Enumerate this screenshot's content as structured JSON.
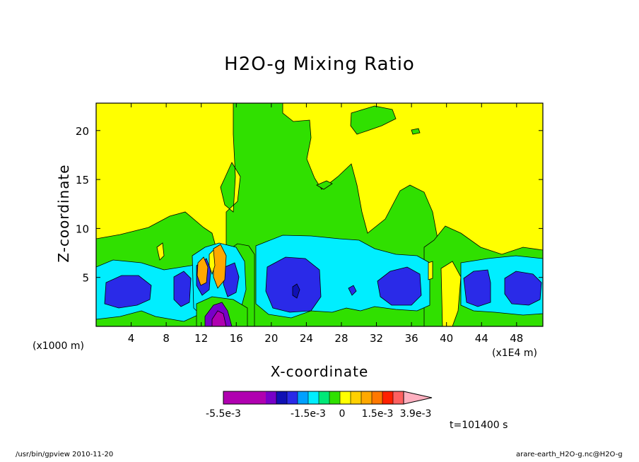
{
  "chart_data": {
    "type": "heatmap",
    "title": "H2O-g Mixing Ratio",
    "xlabel": "X-coordinate",
    "ylabel": "Z-coordinate",
    "x_unit_left": "(x1000 m)",
    "x_unit_right": "(x1E4 m)",
    "xlim": [
      0,
      51
    ],
    "ylim": [
      0,
      22.8
    ],
    "x_ticks": [
      4,
      8,
      12,
      16,
      20,
      24,
      28,
      32,
      36,
      40,
      44,
      48
    ],
    "y_ticks": [
      5,
      10,
      15,
      20
    ],
    "colorbar": {
      "colors": [
        "#b000b0",
        "#b000b0",
        "#b000b0",
        "#b000b0",
        "#7800c8",
        "#1010b4",
        "#2a2ae8",
        "#00a0ff",
        "#00eeff",
        "#00e878",
        "#30e000",
        "#ffff00",
        "#ffd000",
        "#ffa800",
        "#ff7800",
        "#ff2000",
        "#ff6060",
        "#ffb0c0"
      ],
      "labels": [
        "-5.5e-3",
        "-1.5e-3",
        "0",
        "1.5e-3",
        "3.9e-3"
      ]
    },
    "time_label": "t=101400 s",
    "footer_left": "/usr/bin/gpview   2010-11-20",
    "footer_right": "arare-earth_H2O-g.nc@H2O-g",
    "region_colors": {
      "yellow": "#ffff00",
      "green": "#30e000",
      "cyan": "#00eeff",
      "blue": "#2a2ae8",
      "navy": "#1010b4",
      "orange": "#ffa800",
      "purple": "#7800c8",
      "magenta": "#b000b0"
    }
  }
}
